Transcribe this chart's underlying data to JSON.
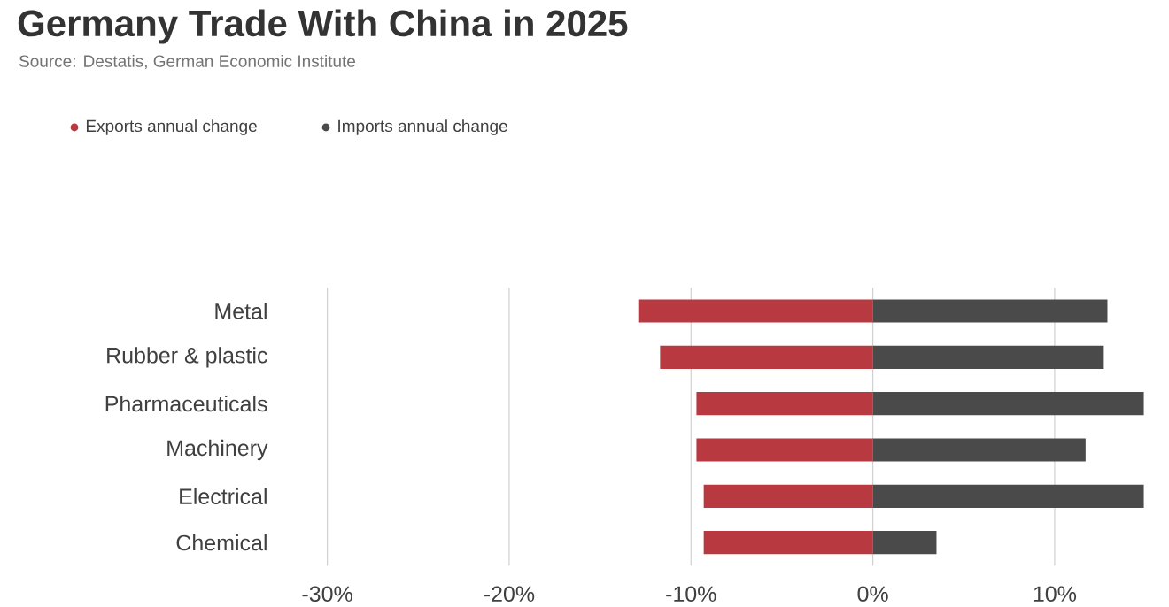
{
  "chart_data": {
    "type": "bar",
    "orientation": "horizontal",
    "title": "Germany Trade With China in 2025",
    "subtitle": "Source: Destatis, German Economic Institute",
    "categories": [
      "Metal",
      "Rubber & plastic",
      "Pharmaceuticals",
      "Machinery",
      "Electrical",
      "Chemical"
    ],
    "series": [
      {
        "name": "Exports annual change",
        "color": "#b8393f",
        "values": [
          -12.9,
          -11.7,
          -9.7,
          -9.7,
          -9.3,
          -9.3
        ]
      },
      {
        "name": "Imports annual change",
        "color": "#4a4a4a",
        "values": [
          12.9,
          12.7,
          14.9,
          11.7,
          14.9,
          3.5
        ]
      }
    ],
    "xlim": [
      -30,
      15
    ],
    "stacked": true,
    "xticks": [
      {
        "value": -30,
        "label": "-30%"
      },
      {
        "value": -20,
        "label": "-20%"
      },
      {
        "value": -10,
        "label": "-10%"
      },
      {
        "value": 0,
        "label": "0%"
      },
      {
        "value": 10,
        "label": "10%"
      }
    ],
    "grid": "x",
    "legend": "top left"
  }
}
